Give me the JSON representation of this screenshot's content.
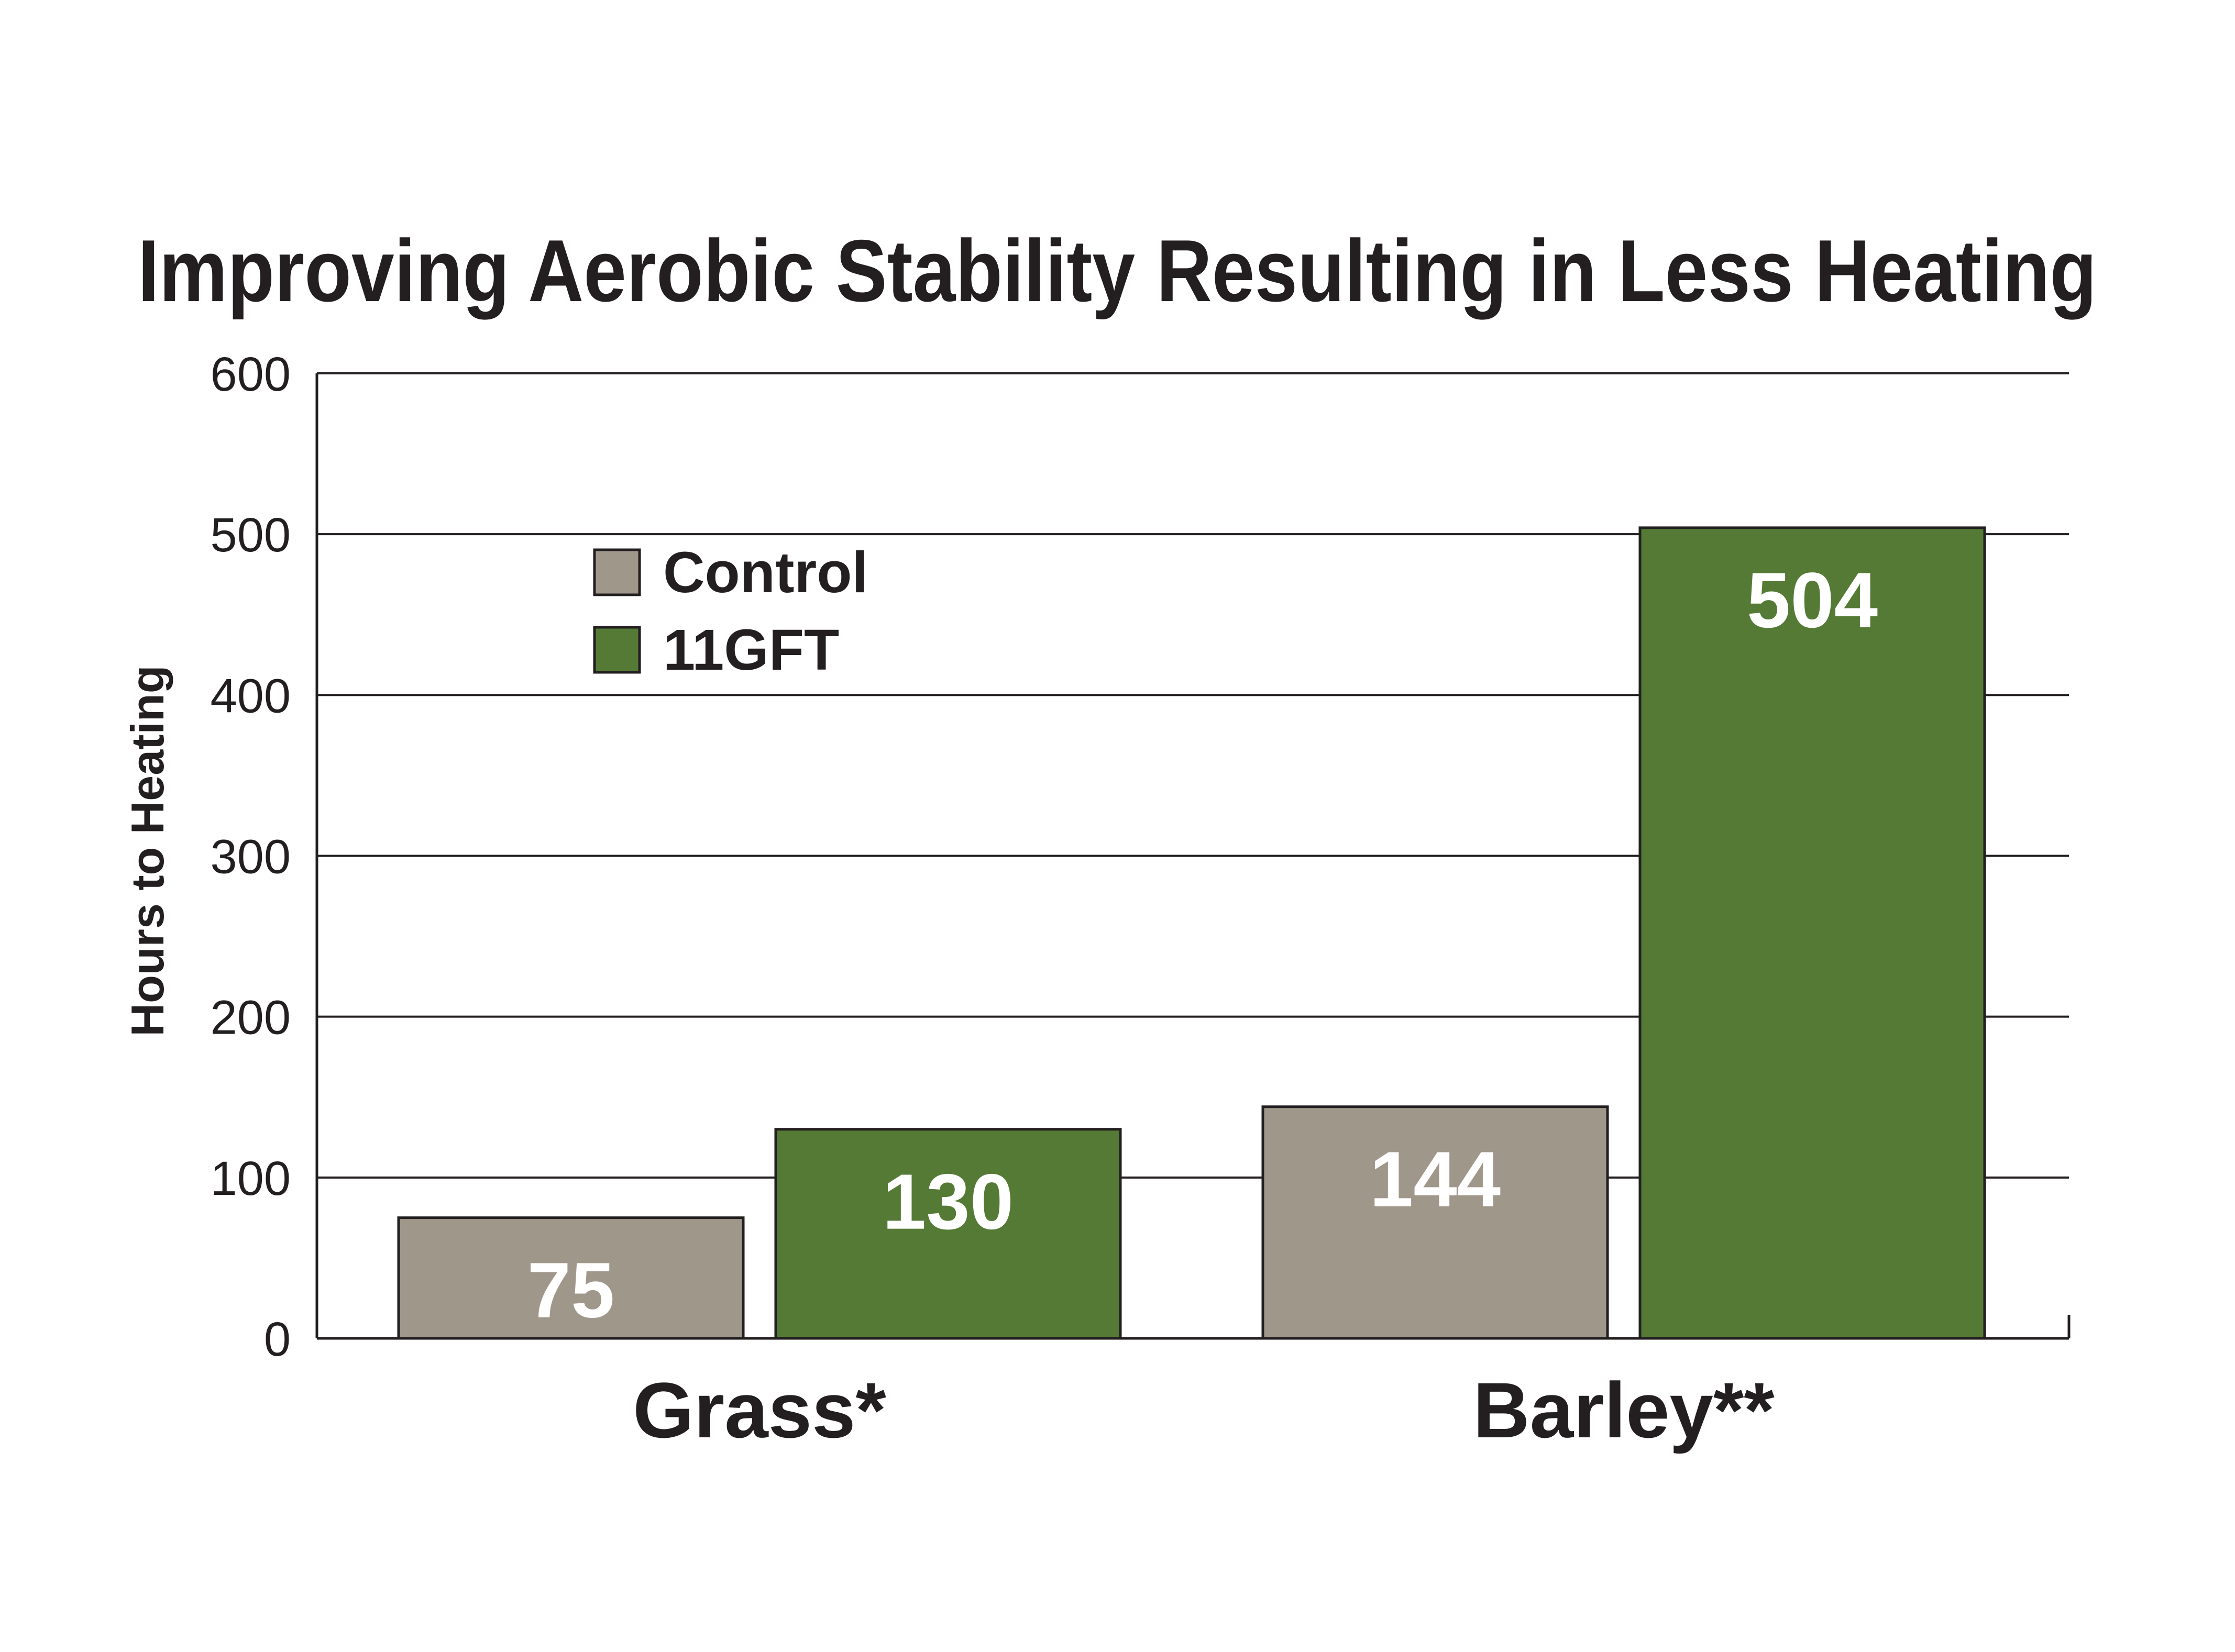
{
  "chart_data": {
    "type": "bar",
    "title": "Improving Aerobic Stability Resulting in Less Heating",
    "ylabel": "Hours to Heating",
    "xlabel": "",
    "ylim": [
      0,
      600
    ],
    "yticks": [
      0,
      100,
      200,
      300,
      400,
      500,
      600
    ],
    "grid": true,
    "legend_position": "top-left",
    "categories": [
      "Grass*",
      "Barley**"
    ],
    "series": [
      {
        "name": "Control",
        "values": [
          75,
          144
        ],
        "color": "#a0978b",
        "value_labels": [
          "75",
          "144"
        ]
      },
      {
        "name": "11GFT",
        "values": [
          130,
          504
        ],
        "color": "#557a35",
        "value_labels": [
          "130",
          "504"
        ]
      }
    ]
  }
}
